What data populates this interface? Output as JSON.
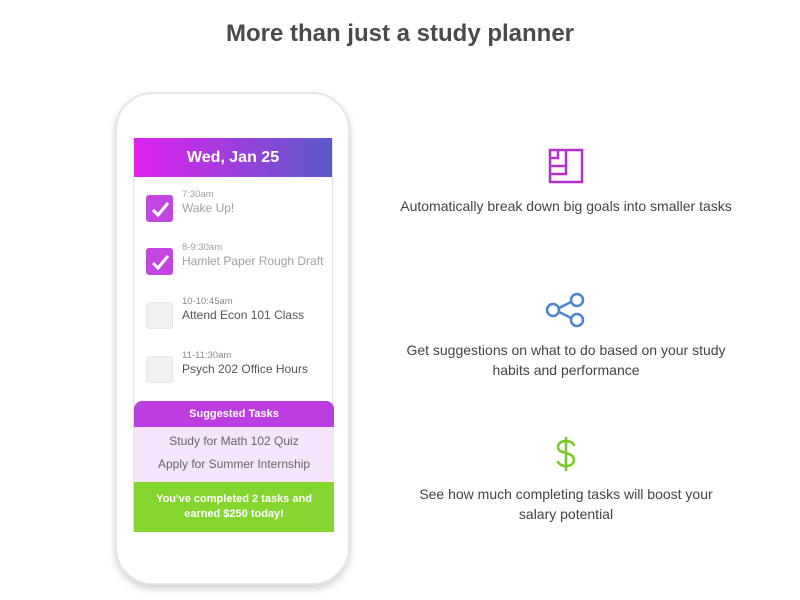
{
  "title": "More than just a study planner",
  "phone": {
    "date": "Wed, Jan 25",
    "items": [
      {
        "time": "7:30am",
        "name": "Wake Up!",
        "done": true
      },
      {
        "time": "8-9:30am",
        "name": "Hamlet Paper Rough Draft",
        "done": true
      },
      {
        "time": "10-10:45am",
        "name": "Attend Econ 101 Class",
        "done": false
      },
      {
        "time": "11-11:30am",
        "name": "Psych 202 Office Hours",
        "done": false
      }
    ],
    "suggested_title": "Suggested Tasks",
    "suggested": [
      "Study for Math 102 Quiz",
      "Apply for Summer Internship"
    ],
    "banner_line1": "You've completed 2 tasks and",
    "banner_line2": "earned $250 today!"
  },
  "features": [
    {
      "icon": "breakdown-squares-icon",
      "color": "#b430d0",
      "text": "Automatically break down big goals into smaller tasks"
    },
    {
      "icon": "share-nodes-icon",
      "color": "#4a86d0",
      "text": "Get suggestions on what to do based on your study habits and performance"
    },
    {
      "icon": "dollar-icon",
      "color": "#78c828",
      "text": "See how much completing tasks will boost your salary potential"
    }
  ]
}
